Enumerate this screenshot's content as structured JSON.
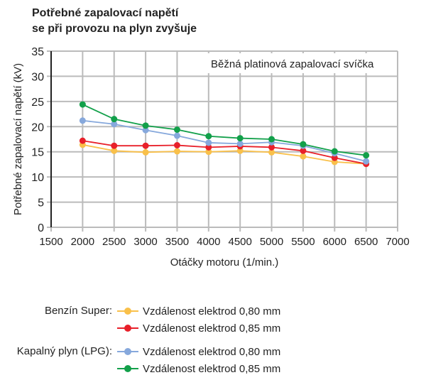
{
  "chart_data": {
    "type": "line",
    "title": [
      "Potřebné zapalovací napětí",
      "se při provozu na plyn zvyšuje"
    ],
    "annotation": "Běžná platinová zapalovací svíčka",
    "xlabel": "Otáčky motoru (1/min.)",
    "ylabel": "Potřebné zapalovací napětí (kV)",
    "xlim": [
      1500,
      7000
    ],
    "ylim": [
      0,
      35
    ],
    "xticks": [
      1500,
      2000,
      2500,
      3000,
      3500,
      4000,
      4500,
      5000,
      5500,
      6000,
      6500,
      7000
    ],
    "yticks": [
      0,
      5,
      10,
      15,
      20,
      25,
      30,
      35
    ],
    "grid": true,
    "x": [
      2000,
      2500,
      3000,
      3500,
      4000,
      4500,
      5000,
      5500,
      6000,
      6500
    ],
    "series": [
      {
        "group": "Benzín Super:",
        "name": "Vzdálenost elektrod 0,80 mm",
        "color": "#f9c04a",
        "values": [
          16.4,
          15.2,
          14.9,
          15.1,
          15.0,
          15.2,
          14.9,
          14.1,
          13.0,
          12.6
        ]
      },
      {
        "group": "",
        "name": "Vzdálenost elektrod 0,85 mm",
        "color": "#e8202a",
        "values": [
          17.2,
          16.2,
          16.2,
          16.3,
          15.9,
          16.1,
          15.9,
          15.2,
          13.8,
          12.6
        ]
      },
      {
        "group": "Kapalný plyn (LPG):",
        "name": "Vzdálenost elektrod 0,80 mm",
        "color": "#86a8dc",
        "values": [
          21.2,
          20.5,
          19.3,
          18.2,
          16.8,
          16.6,
          16.9,
          16.2,
          14.7,
          13.1
        ]
      },
      {
        "group": "",
        "name": "Vzdálenost elektrod 0,85 mm",
        "color": "#12a04a",
        "values": [
          24.4,
          21.5,
          20.2,
          19.4,
          18.1,
          17.7,
          17.5,
          16.5,
          15.1,
          14.3
        ]
      }
    ]
  }
}
